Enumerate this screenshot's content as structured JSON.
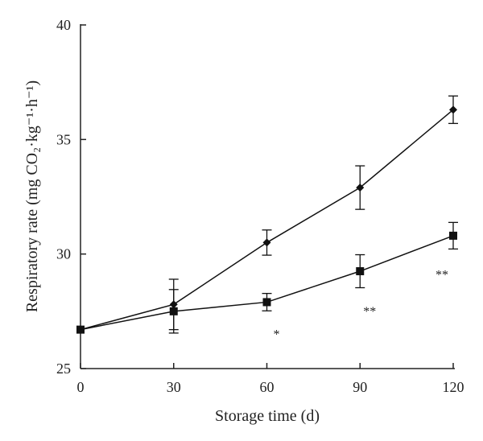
{
  "chart_data": {
    "type": "line",
    "x": [
      0,
      30,
      60,
      90,
      120
    ],
    "xlabel": "Storage time (d)",
    "ylabel": "Respiratory rate (mg CO₂·kg⁻¹·h⁻¹)",
    "xlim": [
      0,
      120
    ],
    "ylim": [
      25,
      40
    ],
    "xticks": [
      "0",
      "30",
      "60",
      "90",
      "120"
    ],
    "yticks": [
      "25",
      "30",
      "35",
      "40"
    ],
    "grid": false,
    "legend": "none",
    "series": [
      {
        "marker": "diamond",
        "values": [
          26.7,
          27.8,
          30.5,
          32.9,
          36.3
        ],
        "errors": [
          0.0,
          1.1,
          0.55,
          0.95,
          0.6
        ]
      },
      {
        "marker": "square",
        "values": [
          26.7,
          27.5,
          27.9,
          29.25,
          30.8
        ],
        "errors": [
          0.0,
          0.95,
          0.38,
          0.72,
          0.58
        ]
      }
    ],
    "annotations": [
      {
        "x": 60,
        "y": 26.6,
        "text": "*"
      },
      {
        "x": 90,
        "y": 27.6,
        "text": "**"
      },
      {
        "x": 120,
        "y": 29.2,
        "text": "**"
      }
    ]
  }
}
